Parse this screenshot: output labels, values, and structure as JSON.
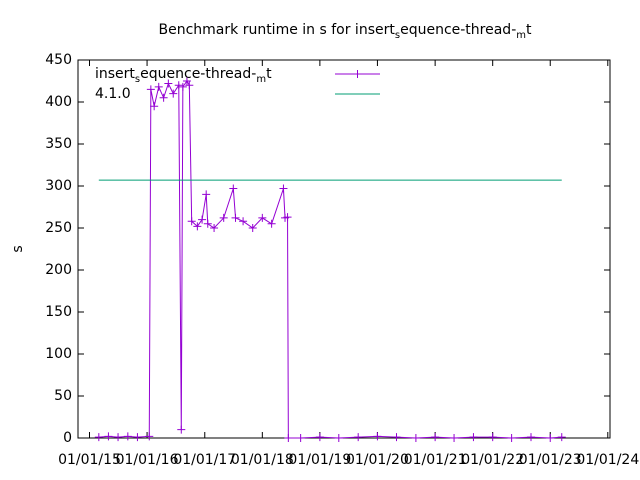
{
  "chart_data": {
    "type": "line",
    "title": [
      "Benchmark runtime in s for insert",
      "s",
      "equence-thread-",
      "m",
      "t"
    ],
    "y_label": "s",
    "xlim": [
      "2014-10-20",
      "2024-01-15"
    ],
    "xticks": [
      {
        "value": "2015-01-01",
        "label": "01/01/15"
      },
      {
        "value": "2016-01-01",
        "label": "01/01/16"
      },
      {
        "value": "2017-01-01",
        "label": "01/01/17"
      },
      {
        "value": "2018-01-01",
        "label": "01/01/18"
      },
      {
        "value": "2019-01-01",
        "label": "01/01/19"
      },
      {
        "value": "2020-01-01",
        "label": "01/01/20"
      },
      {
        "value": "2021-01-01",
        "label": "01/01/21"
      },
      {
        "value": "2022-01-01",
        "label": "01/01/22"
      },
      {
        "value": "2023-01-01",
        "label": "01/01/23"
      },
      {
        "value": "2024-01-01",
        "label": "01/01/24"
      }
    ],
    "ylim": [
      0,
      450
    ],
    "yticks": [
      0,
      50,
      100,
      150,
      200,
      250,
      300,
      350,
      400,
      450
    ],
    "series": [
      {
        "name": [
          "insert",
          "s",
          "equence-thread-",
          "m",
          "t"
        ],
        "color": "#9400d3",
        "markers": true,
        "x": [
          "2015-03-01",
          "2015-05-01",
          "2015-07-01",
          "2015-09-01",
          "2015-11-01",
          "2016-01-15",
          "2016-01-25",
          "2016-02-15",
          "2016-03-15",
          "2016-04-15",
          "2016-05-15",
          "2016-06-15",
          "2016-07-20",
          "2016-08-05",
          "2016-08-15",
          "2016-09-10",
          "2016-09-25",
          "2016-10-10",
          "2016-11-15",
          "2016-12-15",
          "2017-01-10",
          "2017-01-20",
          "2017-03-01",
          "2017-05-01",
          "2017-07-01",
          "2017-07-15",
          "2017-09-01",
          "2017-11-01",
          "2018-01-01",
          "2018-03-01",
          "2018-05-15",
          "2018-05-25",
          "2018-06-10",
          "2018-06-15",
          "2018-09-01",
          "2019-01-01",
          "2019-05-01",
          "2019-09-01",
          "2020-01-01",
          "2020-05-01",
          "2020-09-01",
          "2021-01-01",
          "2021-05-01",
          "2021-09-01",
          "2022-01-01",
          "2022-05-01",
          "2022-09-01",
          "2023-01-01",
          "2023-03-15"
        ],
        "values": [
          1,
          2,
          1,
          2,
          1,
          2,
          415,
          395,
          418,
          405,
          422,
          410,
          420,
          10,
          418,
          425,
          420,
          258,
          252,
          260,
          290,
          255,
          250,
          262,
          297,
          262,
          258,
          250,
          262,
          255,
          297,
          262,
          263,
          0,
          0,
          1,
          0,
          1,
          2,
          1,
          0,
          1,
          0,
          1,
          1,
          0,
          1,
          0,
          1
        ]
      },
      {
        "name": "4.1.0",
        "color": "#009e73",
        "markers": false,
        "x": [
          "2015-03-01",
          "2023-03-15"
        ],
        "values": [
          307,
          307
        ]
      }
    ]
  }
}
